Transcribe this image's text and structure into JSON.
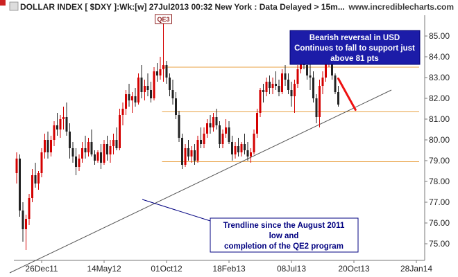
{
  "header": {
    "title": "DOLLAR INDEX [ $DXY ]:Wk:[w]  27Jul2013 00:32 New York : Data Delayed > 15m...",
    "site": "www.incrediblecharts.com"
  },
  "colors": {
    "up": "#d40000",
    "down": "#222222",
    "support": "#e8a040",
    "trend": "#555555",
    "note_bg": "#1c1ca8",
    "note_border": "#000070",
    "arrow": "#ee1111"
  },
  "chart_data": {
    "type": "candlestick",
    "title": "DOLLAR INDEX [ $DXY ]:Wk:[w]  27Jul2013 00:32 New York : Data Delayed > 15m...",
    "x_tick_labels": [
      "26Dec11",
      "14May12",
      "01Oct12",
      "18Feb13",
      "08Jul13",
      "20Oct13",
      "28Jan14"
    ],
    "y_ticks": [
      75.0,
      76.0,
      77.0,
      78.0,
      79.0,
      80.0,
      81.0,
      82.0,
      83.0,
      84.0,
      85.0
    ],
    "y_tick_labels": [
      "75.00",
      "76.00",
      "77.00",
      "78.00",
      "79.00",
      "80.00",
      "81.00",
      "82.00",
      "83.00",
      "84.00",
      "85.00"
    ],
    "ylim": [
      74.2,
      86.0
    ],
    "weeks_per_tick": 20,
    "support_levels": [
      83.5,
      81.35,
      78.95
    ],
    "trendline": {
      "from": [
        0,
        73.6
      ],
      "to": [
        120,
        82.4
      ]
    },
    "target_arrow": {
      "from": [
        103,
        82.95
      ],
      "to": [
        108.5,
        81.45
      ]
    },
    "qe3_week": 47,
    "candles": [
      [
        78.4,
        79.4,
        77.9,
        79.1
      ],
      [
        79.1,
        79.3,
        76.3,
        76.6
      ],
      [
        76.6,
        77.0,
        75.1,
        75.7
      ],
      [
        75.7,
        76.4,
        74.7,
        76.2
      ],
      [
        76.2,
        77.4,
        75.9,
        77.2
      ],
      [
        77.2,
        78.6,
        77.0,
        78.3
      ],
      [
        78.3,
        78.9,
        77.7,
        77.9
      ],
      [
        77.9,
        78.5,
        77.6,
        78.4
      ],
      [
        78.4,
        79.6,
        78.2,
        79.4
      ],
      [
        79.4,
        80.3,
        79.1,
        80.0
      ],
      [
        80.0,
        80.4,
        79.1,
        79.4
      ],
      [
        79.4,
        80.2,
        79.2,
        80.0
      ],
      [
        80.0,
        80.9,
        79.7,
        80.7
      ],
      [
        80.7,
        81.3,
        80.2,
        80.5
      ],
      [
        80.5,
        81.2,
        80.1,
        81.0
      ],
      [
        81.0,
        81.6,
        80.5,
        81.1
      ],
      [
        81.1,
        81.8,
        80.2,
        80.4
      ],
      [
        80.4,
        80.8,
        79.1,
        79.6
      ],
      [
        79.6,
        79.9,
        78.9,
        79.2
      ],
      [
        79.2,
        79.6,
        78.3,
        78.7
      ],
      [
        78.7,
        79.3,
        78.5,
        79.1
      ],
      [
        79.1,
        79.9,
        78.9,
        79.6
      ],
      [
        79.6,
        80.2,
        79.1,
        79.4
      ],
      [
        79.4,
        80.1,
        79.2,
        79.9
      ],
      [
        79.9,
        80.5,
        79.2,
        79.3
      ],
      [
        79.3,
        79.5,
        78.8,
        79.0
      ],
      [
        79.0,
        79.5,
        78.9,
        79.4
      ],
      [
        79.4,
        79.8,
        78.6,
        78.9
      ],
      [
        78.9,
        80.0,
        78.8,
        79.8
      ],
      [
        79.8,
        80.2,
        79.0,
        79.3
      ],
      [
        79.3,
        80.0,
        78.9,
        79.7
      ],
      [
        79.7,
        80.3,
        79.3,
        80.0
      ],
      [
        80.0,
        80.6,
        79.5,
        79.6
      ],
      [
        79.6,
        81.5,
        79.5,
        81.2
      ],
      [
        81.2,
        81.8,
        80.7,
        81.5
      ],
      [
        81.5,
        82.4,
        81.2,
        82.2
      ],
      [
        82.2,
        82.7,
        81.6,
        81.9
      ],
      [
        81.9,
        82.3,
        81.3,
        82.1
      ],
      [
        82.1,
        82.5,
        81.6,
        81.8
      ],
      [
        81.8,
        83.2,
        81.7,
        83.0
      ],
      [
        83.0,
        83.6,
        82.0,
        82.3
      ],
      [
        82.3,
        82.9,
        81.9,
        82.6
      ],
      [
        82.6,
        83.2,
        82.1,
        82.4
      ],
      [
        82.4,
        82.8,
        81.8,
        82.0
      ],
      [
        82.0,
        83.5,
        81.9,
        83.3
      ],
      [
        83.3,
        83.7,
        82.8,
        83.1
      ],
      [
        83.1,
        84.0,
        82.9,
        83.4
      ],
      [
        83.4,
        85.8,
        82.8,
        83.6
      ],
      [
        83.6,
        83.8,
        82.7,
        83.0
      ],
      [
        83.0,
        83.2,
        82.1,
        82.4
      ],
      [
        82.4,
        82.9,
        81.7,
        82.0
      ],
      [
        82.0,
        82.3,
        81.0,
        81.2
      ],
      [
        81.2,
        81.4,
        79.9,
        80.1
      ],
      [
        80.1,
        80.3,
        78.6,
        78.8
      ],
      [
        78.8,
        79.8,
        78.7,
        79.6
      ],
      [
        79.6,
        80.0,
        79.0,
        79.2
      ],
      [
        79.2,
        79.7,
        78.9,
        79.5
      ],
      [
        79.5,
        79.8,
        78.8,
        79.0
      ],
      [
        79.0,
        80.2,
        78.9,
        80.0
      ],
      [
        80.0,
        80.6,
        79.6,
        79.8
      ],
      [
        79.8,
        80.6,
        79.6,
        80.3
      ],
      [
        80.3,
        81.0,
        80.1,
        80.8
      ],
      [
        80.8,
        81.2,
        80.3,
        80.6
      ],
      [
        80.6,
        81.3,
        80.4,
        81.1
      ],
      [
        81.1,
        81.5,
        80.5,
        80.7
      ],
      [
        80.7,
        80.9,
        79.6,
        79.8
      ],
      [
        79.8,
        80.5,
        79.6,
        80.3
      ],
      [
        80.3,
        81.0,
        80.1,
        80.6
      ],
      [
        80.6,
        80.9,
        79.8,
        79.9
      ],
      [
        79.9,
        80.2,
        79.0,
        79.3
      ],
      [
        79.3,
        79.9,
        79.1,
        79.7
      ],
      [
        79.7,
        80.1,
        79.2,
        79.4
      ],
      [
        79.4,
        79.9,
        79.2,
        79.8
      ],
      [
        79.8,
        80.3,
        79.3,
        79.5
      ],
      [
        79.5,
        79.9,
        79.0,
        79.2
      ],
      [
        79.2,
        79.6,
        78.9,
        79.4
      ],
      [
        79.4,
        80.5,
        79.3,
        80.3
      ],
      [
        80.3,
        81.5,
        80.1,
        81.3
      ],
      [
        81.3,
        82.5,
        81.1,
        82.4
      ],
      [
        82.4,
        82.7,
        81.8,
        82.3
      ],
      [
        82.3,
        83.0,
        82.1,
        82.8
      ],
      [
        82.8,
        83.1,
        82.2,
        82.5
      ],
      [
        82.5,
        83.0,
        82.2,
        82.7
      ],
      [
        82.7,
        83.3,
        82.4,
        82.6
      ],
      [
        82.6,
        82.9,
        82.1,
        82.3
      ],
      [
        82.3,
        83.4,
        82.2,
        83.2
      ],
      [
        83.2,
        83.6,
        82.6,
        82.9
      ],
      [
        82.9,
        83.2,
        82.2,
        82.4
      ],
      [
        82.4,
        82.8,
        81.6,
        82.1
      ],
      [
        82.1,
        82.9,
        81.3,
        82.7
      ],
      [
        82.7,
        83.6,
        82.5,
        83.4
      ],
      [
        83.4,
        84.4,
        83.2,
        84.2
      ],
      [
        84.2,
        84.5,
        83.4,
        83.6
      ],
      [
        83.6,
        84.0,
        82.9,
        83.1
      ],
      [
        83.1,
        84.3,
        82.4,
        83.0
      ],
      [
        83.0,
        83.3,
        81.8,
        82.0
      ],
      [
        82.0,
        82.2,
        80.8,
        81.1
      ],
      [
        81.1,
        82.9,
        80.6,
        82.6
      ],
      [
        82.6,
        83.3,
        82.2,
        83.0
      ],
      [
        83.0,
        84.3,
        82.8,
        83.8
      ],
      [
        83.8,
        84.7,
        83.5,
        84.5
      ],
      [
        84.5,
        84.6,
        82.9,
        83.1
      ],
      [
        83.1,
        83.2,
        82.2,
        82.3
      ],
      [
        82.3,
        82.6,
        81.6,
        81.7
      ]
    ]
  },
  "annotations": {
    "qe3_label": "QE3",
    "bearish_note": [
      "Bearish reversal in USD",
      "Continues to fall to support just",
      "above 81 pts"
    ],
    "trend_note": [
      "Trendline since the August 2011",
      "low and",
      "completion of the QE2 program"
    ]
  }
}
